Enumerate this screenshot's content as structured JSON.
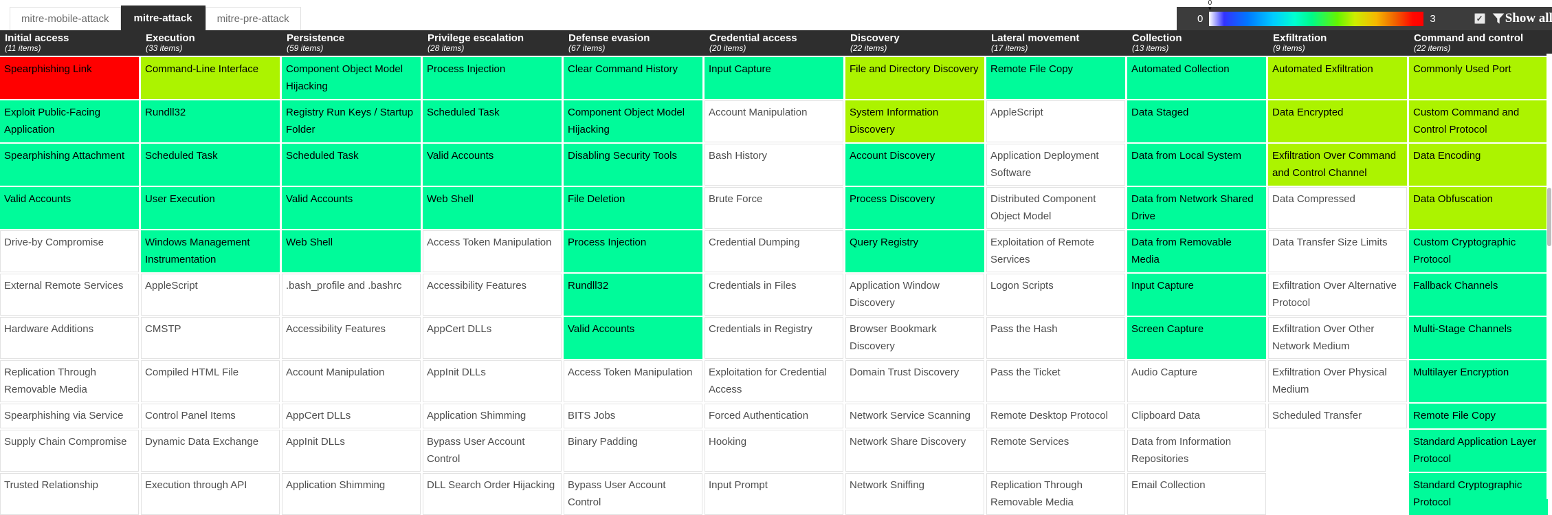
{
  "tabs": [
    {
      "label": "mitre-mobile-attack",
      "active": false
    },
    {
      "label": "mitre-attack",
      "active": true
    },
    {
      "label": "mitre-pre-attack",
      "active": false
    }
  ],
  "gradient": {
    "min_label": "0",
    "max_label": "3",
    "handle_value": "0",
    "handle_marker": "▼"
  },
  "controls": {
    "show_all_label": "Show all",
    "checkbox_checked": true,
    "checkbox_glyph": "✓"
  },
  "colors": {
    "red": "#ff0000",
    "green": "#00fb9a",
    "chartreuse": "#acf300",
    "header_bg": "#2e2e2e"
  },
  "matrix": {
    "tactics": [
      {
        "name": "Initial access",
        "items": "(11 items)",
        "techniques": [
          {
            "name": "Spearphishing Link",
            "color": "red"
          },
          {
            "name": "Exploit Public-Facing Application",
            "color": "green"
          },
          {
            "name": "Spearphishing Attachment",
            "color": "green"
          },
          {
            "name": "Valid Accounts",
            "color": "green"
          },
          {
            "name": "Drive-by Compromise",
            "color": "white"
          },
          {
            "name": "External Remote Services",
            "color": "white"
          },
          {
            "name": "Hardware Additions",
            "color": "white"
          },
          {
            "name": "Replication Through Removable Media",
            "color": "white"
          },
          {
            "name": "Spearphishing via Service",
            "color": "white"
          },
          {
            "name": "Supply Chain Compromise",
            "color": "white"
          },
          {
            "name": "Trusted Relationship",
            "color": "white"
          }
        ]
      },
      {
        "name": "Execution",
        "items": "(33 items)",
        "techniques": [
          {
            "name": "Command-Line Interface",
            "color": "chartreuse"
          },
          {
            "name": "Rundll32",
            "color": "green"
          },
          {
            "name": "Scheduled Task",
            "color": "green"
          },
          {
            "name": "User Execution",
            "color": "green"
          },
          {
            "name": "Windows Management Instrumentation",
            "color": "green"
          },
          {
            "name": "AppleScript",
            "color": "white"
          },
          {
            "name": "CMSTP",
            "color": "white"
          },
          {
            "name": "Compiled HTML File",
            "color": "white"
          },
          {
            "name": "Control Panel Items",
            "color": "white"
          },
          {
            "name": "Dynamic Data Exchange",
            "color": "white"
          },
          {
            "name": "Execution through API",
            "color": "white"
          }
        ]
      },
      {
        "name": "Persistence",
        "items": "(59 items)",
        "techniques": [
          {
            "name": "Component Object Model Hijacking",
            "color": "green"
          },
          {
            "name": "Registry Run Keys / Startup Folder",
            "color": "green"
          },
          {
            "name": "Scheduled Task",
            "color": "green"
          },
          {
            "name": "Valid Accounts",
            "color": "green"
          },
          {
            "name": "Web Shell",
            "color": "green"
          },
          {
            "name": ".bash_profile and .bashrc",
            "color": "white"
          },
          {
            "name": "Accessibility Features",
            "color": "white"
          },
          {
            "name": "Account Manipulation",
            "color": "white"
          },
          {
            "name": "AppCert DLLs",
            "color": "white"
          },
          {
            "name": "AppInit DLLs",
            "color": "white"
          },
          {
            "name": "Application Shimming",
            "color": "white"
          }
        ]
      },
      {
        "name": "Privilege escalation",
        "items": "(28 items)",
        "techniques": [
          {
            "name": "Process Injection",
            "color": "green"
          },
          {
            "name": "Scheduled Task",
            "color": "green"
          },
          {
            "name": "Valid Accounts",
            "color": "green"
          },
          {
            "name": "Web Shell",
            "color": "green"
          },
          {
            "name": "Access Token Manipulation",
            "color": "white"
          },
          {
            "name": "Accessibility Features",
            "color": "white"
          },
          {
            "name": "AppCert DLLs",
            "color": "white"
          },
          {
            "name": "AppInit DLLs",
            "color": "white"
          },
          {
            "name": "Application Shimming",
            "color": "white"
          },
          {
            "name": "Bypass User Account Control",
            "color": "white"
          },
          {
            "name": "DLL Search Order Hijacking",
            "color": "white"
          }
        ]
      },
      {
        "name": "Defense evasion",
        "items": "(67 items)",
        "techniques": [
          {
            "name": "Clear Command History",
            "color": "green"
          },
          {
            "name": "Component Object Model Hijacking",
            "color": "green"
          },
          {
            "name": "Disabling Security Tools",
            "color": "green"
          },
          {
            "name": "File Deletion",
            "color": "green"
          },
          {
            "name": "Process Injection",
            "color": "green"
          },
          {
            "name": "Rundll32",
            "color": "green"
          },
          {
            "name": "Valid Accounts",
            "color": "green"
          },
          {
            "name": "Access Token Manipulation",
            "color": "white"
          },
          {
            "name": "BITS Jobs",
            "color": "white"
          },
          {
            "name": "Binary Padding",
            "color": "white"
          },
          {
            "name": "Bypass User Account Control",
            "color": "white"
          }
        ]
      },
      {
        "name": "Credential access",
        "items": "(20 items)",
        "techniques": [
          {
            "name": "Input Capture",
            "color": "green"
          },
          {
            "name": "Account Manipulation",
            "color": "white"
          },
          {
            "name": "Bash History",
            "color": "white"
          },
          {
            "name": "Brute Force",
            "color": "white"
          },
          {
            "name": "Credential Dumping",
            "color": "white"
          },
          {
            "name": "Credentials in Files",
            "color": "white"
          },
          {
            "name": "Credentials in Registry",
            "color": "white"
          },
          {
            "name": "Exploitation for Credential Access",
            "color": "white"
          },
          {
            "name": "Forced Authentication",
            "color": "white"
          },
          {
            "name": "Hooking",
            "color": "white"
          },
          {
            "name": "Input Prompt",
            "color": "white"
          }
        ]
      },
      {
        "name": "Discovery",
        "items": "(22 items)",
        "techniques": [
          {
            "name": "File and Directory Discovery",
            "color": "chartreuse"
          },
          {
            "name": "System Information Discovery",
            "color": "chartreuse"
          },
          {
            "name": "Account Discovery",
            "color": "green"
          },
          {
            "name": "Process Discovery",
            "color": "green"
          },
          {
            "name": "Query Registry",
            "color": "green"
          },
          {
            "name": "Application Window Discovery",
            "color": "white"
          },
          {
            "name": "Browser Bookmark Discovery",
            "color": "white"
          },
          {
            "name": "Domain Trust Discovery",
            "color": "white"
          },
          {
            "name": "Network Service Scanning",
            "color": "white"
          },
          {
            "name": "Network Share Discovery",
            "color": "white"
          },
          {
            "name": "Network Sniffing",
            "color": "white"
          }
        ]
      },
      {
        "name": "Lateral movement",
        "items": "(17 items)",
        "techniques": [
          {
            "name": "Remote File Copy",
            "color": "green"
          },
          {
            "name": "AppleScript",
            "color": "white"
          },
          {
            "name": "Application Deployment Software",
            "color": "white"
          },
          {
            "name": "Distributed Component Object Model",
            "color": "white"
          },
          {
            "name": "Exploitation of Remote Services",
            "color": "white"
          },
          {
            "name": "Logon Scripts",
            "color": "white"
          },
          {
            "name": "Pass the Hash",
            "color": "white"
          },
          {
            "name": "Pass the Ticket",
            "color": "white"
          },
          {
            "name": "Remote Desktop Protocol",
            "color": "white"
          },
          {
            "name": "Remote Services",
            "color": "white"
          },
          {
            "name": "Replication Through Removable Media",
            "color": "white"
          }
        ]
      },
      {
        "name": "Collection",
        "items": "(13 items)",
        "techniques": [
          {
            "name": "Automated Collection",
            "color": "green"
          },
          {
            "name": "Data Staged",
            "color": "green"
          },
          {
            "name": "Data from Local System",
            "color": "green"
          },
          {
            "name": "Data from Network Shared Drive",
            "color": "green"
          },
          {
            "name": "Data from Removable Media",
            "color": "green"
          },
          {
            "name": "Input Capture",
            "color": "green"
          },
          {
            "name": "Screen Capture",
            "color": "green"
          },
          {
            "name": "Audio Capture",
            "color": "white"
          },
          {
            "name": "Clipboard Data",
            "color": "white"
          },
          {
            "name": "Data from Information Repositories",
            "color": "white"
          },
          {
            "name": "Email Collection",
            "color": "white"
          }
        ]
      },
      {
        "name": "Exfiltration",
        "items": "(9 items)",
        "techniques": [
          {
            "name": "Automated Exfiltration",
            "color": "chartreuse"
          },
          {
            "name": "Data Encrypted",
            "color": "chartreuse"
          },
          {
            "name": "Exfiltration Over Command and Control Channel",
            "color": "chartreuse"
          },
          {
            "name": "Data Compressed",
            "color": "white"
          },
          {
            "name": "Data Transfer Size Limits",
            "color": "white"
          },
          {
            "name": "Exfiltration Over Alternative Protocol",
            "color": "white"
          },
          {
            "name": "Exfiltration Over Other Network Medium",
            "color": "white"
          },
          {
            "name": "Exfiltration Over Physical Medium",
            "color": "white"
          },
          {
            "name": "Scheduled Transfer",
            "color": "white"
          }
        ]
      },
      {
        "name": "Command and control",
        "items": "(22 items)",
        "techniques": [
          {
            "name": "Commonly Used Port",
            "color": "chartreuse"
          },
          {
            "name": "Custom Command and Control Protocol",
            "color": "chartreuse"
          },
          {
            "name": "Data Encoding",
            "color": "chartreuse"
          },
          {
            "name": "Data Obfuscation",
            "color": "chartreuse"
          },
          {
            "name": "Custom Cryptographic Protocol",
            "color": "green"
          },
          {
            "name": "Fallback Channels",
            "color": "green"
          },
          {
            "name": "Multi-Stage Channels",
            "color": "green"
          },
          {
            "name": "Multilayer Encryption",
            "color": "green"
          },
          {
            "name": "Remote File Copy",
            "color": "green"
          },
          {
            "name": "Standard Application Layer Protocol",
            "color": "green"
          },
          {
            "name": "Standard Cryptographic Protocol",
            "color": "green"
          }
        ]
      }
    ]
  }
}
